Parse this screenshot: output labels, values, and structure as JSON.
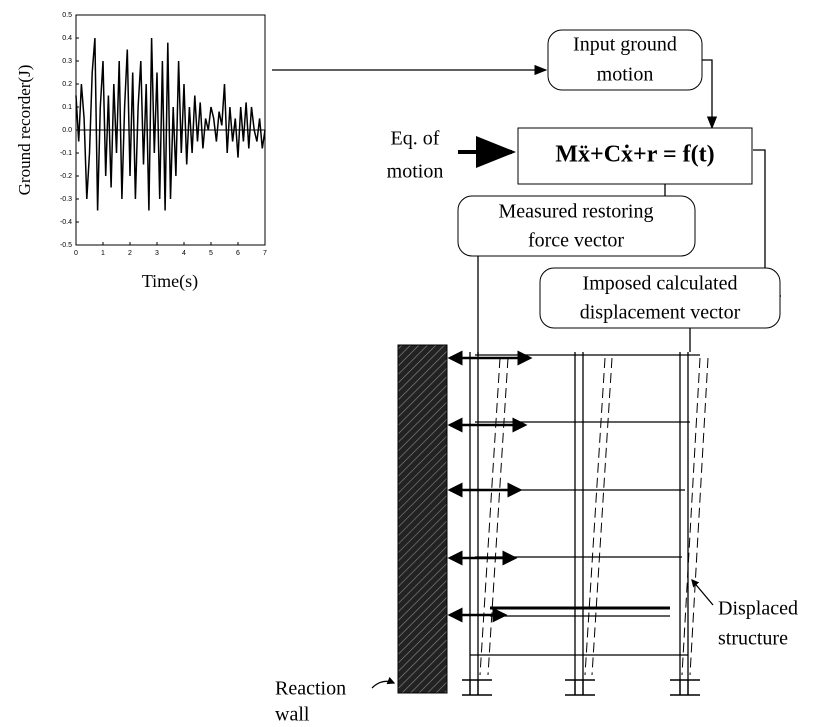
{
  "chart_data": {
    "type": "line",
    "ylabel": "Ground recorder(J)",
    "xlabel": "Time(s)",
    "xlim": [
      0,
      7
    ],
    "ylim": [
      -0.5,
      0.5
    ],
    "xticks": [
      0,
      1,
      2,
      3,
      4,
      5,
      6,
      7
    ],
    "yticks": [
      0.5,
      0.4,
      0.3,
      0.2,
      0.1,
      {
        "value": 0,
        "label": "0.0"
      },
      -0.1,
      -0.2,
      -0.3,
      -0.4,
      -0.5
    ],
    "color": "#000000",
    "x": [
      0,
      0.1,
      0.2,
      0.3,
      0.4,
      0.5,
      0.6,
      0.7,
      0.8,
      0.9,
      1,
      1.1,
      1.2,
      1.3,
      1.4,
      1.5,
      1.6,
      1.7,
      1.8,
      1.9,
      2,
      2.1,
      2.2,
      2.3,
      2.4,
      2.5,
      2.6,
      2.7,
      2.8,
      2.9,
      3,
      3.1,
      3.2,
      3.3,
      3.4,
      3.5,
      3.6,
      3.7,
      3.8,
      3.9,
      4,
      4.1,
      4.2,
      4.3,
      4.4,
      4.5,
      4.6,
      4.7,
      4.8,
      4.9,
      5,
      5.1,
      5.2,
      5.3,
      5.4,
      5.5,
      5.6,
      5.7,
      5.8,
      5.9,
      6,
      6.1,
      6.2,
      6.3,
      6.4,
      6.5,
      6.6,
      6.7,
      6.8,
      6.9,
      7
    ],
    "values": [
      0.15,
      -0.05,
      0.2,
      0.05,
      -0.3,
      -0.1,
      0.25,
      0.4,
      -0.35,
      0.1,
      0.3,
      -0.2,
      0.15,
      -0.25,
      0.2,
      -0.1,
      0.3,
      -0.3,
      0.1,
      0.35,
      -0.2,
      0.25,
      -0.3,
      0.1,
      0.3,
      -0.15,
      0.2,
      -0.35,
      0.4,
      -0.1,
      0.25,
      -0.3,
      0.3,
      -0.35,
      0.38,
      -0.3,
      0.1,
      -0.2,
      0.3,
      -0.1,
      0.2,
      -0.15,
      0.1,
      -0.1,
      0.15,
      -0.05,
      0.12,
      -0.08,
      0.05,
      0,
      0.1,
      0.05,
      -0.05,
      0.08,
      0.02,
      0.2,
      -0.1,
      0.1,
      -0.05,
      0.05,
      -0.12,
      0.1,
      -0.05,
      0.12,
      -0.08,
      0.1,
      0,
      -0.05,
      0.05,
      -0.08,
      0
    ]
  },
  "input_box": {
    "lines": [
      "Input ground",
      "motion"
    ]
  },
  "eq_label": {
    "lines": [
      "Eq. of",
      "motion"
    ]
  },
  "equation": "Mẍ+Cẋ+r = f(t)",
  "restoring_box": {
    "lines": [
      "Measured restoring",
      "force vector"
    ]
  },
  "imposed_box": {
    "lines": [
      "Imposed calculated",
      "displacement vector"
    ]
  },
  "displaced_label": {
    "lines": [
      "Displaced",
      "structure"
    ]
  },
  "wall_label": {
    "lines": [
      "Reaction",
      "wall"
    ]
  }
}
